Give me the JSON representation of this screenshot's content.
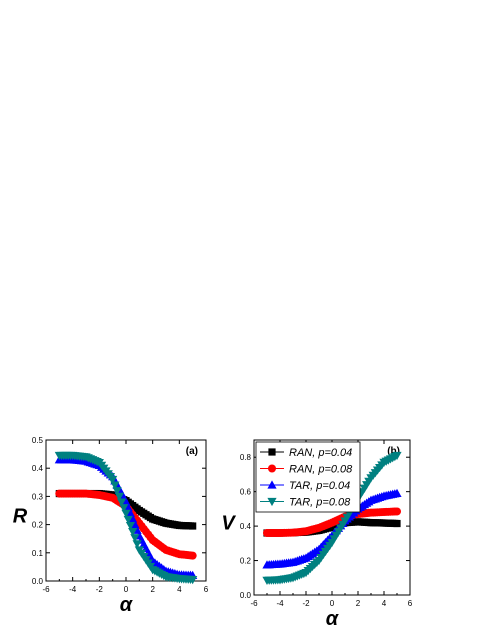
{
  "chart_data": [
    {
      "type": "scatter",
      "panel_label": "(a)",
      "xlabel": "α",
      "ylabel": "R",
      "xlim": [
        -6,
        6
      ],
      "ylim": [
        0,
        0.5
      ],
      "xticks": [
        "-6",
        "-4",
        "-2",
        "0",
        "2",
        "4",
        "6"
      ],
      "yticks": [
        "0.0",
        "0.1",
        "0.2",
        "0.3",
        "0.4",
        "0.5"
      ],
      "x": [
        -5,
        -4,
        -3,
        -2,
        -1,
        0,
        1,
        2,
        3,
        4,
        5
      ],
      "series": [
        {
          "color": "#000000",
          "marker": "square",
          "values": [
            0.31,
            0.31,
            0.31,
            0.31,
            0.305,
            0.285,
            0.25,
            0.22,
            0.205,
            0.197,
            0.195
          ]
        },
        {
          "color": "#ff0000",
          "marker": "circle",
          "values": [
            0.31,
            0.31,
            0.31,
            0.305,
            0.295,
            0.265,
            0.205,
            0.145,
            0.11,
            0.095,
            0.09
          ]
        },
        {
          "color": "#0000ff",
          "marker": "triangle-up",
          "values": [
            0.43,
            0.43,
            0.425,
            0.41,
            0.37,
            0.28,
            0.16,
            0.07,
            0.035,
            0.022,
            0.02
          ]
        },
        {
          "color": "#008080",
          "marker": "triangle-down",
          "values": [
            0.445,
            0.445,
            0.44,
            0.42,
            0.36,
            0.24,
            0.11,
            0.04,
            0.015,
            0.008,
            0.005
          ]
        }
      ]
    },
    {
      "type": "line",
      "panel_label": "(b)",
      "xlabel": "α",
      "ylabel": "V",
      "xlim": [
        -6,
        6
      ],
      "ylim": [
        0,
        0.9
      ],
      "xticks": [
        "-6",
        "-4",
        "-2",
        "0",
        "2",
        "4",
        "6"
      ],
      "yticks": [
        "0.0",
        "0.2",
        "0.4",
        "0.6",
        "0.8"
      ],
      "legend_position": "top-left",
      "x": [
        -5,
        -4,
        -3,
        -2,
        -1,
        0,
        1,
        2,
        3,
        4,
        5
      ],
      "series": [
        {
          "name": "RAN, p=0.04",
          "color": "#000000",
          "marker": "square",
          "values": [
            0.36,
            0.36,
            0.362,
            0.365,
            0.375,
            0.395,
            0.42,
            0.425,
            0.42,
            0.418,
            0.415
          ]
        },
        {
          "name": "RAN, p=0.08",
          "color": "#ff0000",
          "marker": "circle",
          "values": [
            0.36,
            0.36,
            0.362,
            0.37,
            0.39,
            0.42,
            0.455,
            0.47,
            0.478,
            0.482,
            0.485
          ]
        },
        {
          "name": "TAR, p=0.04",
          "color": "#0000ff",
          "marker": "triangle-up",
          "values": [
            0.175,
            0.18,
            0.19,
            0.215,
            0.265,
            0.345,
            0.43,
            0.5,
            0.55,
            0.575,
            0.59
          ]
        },
        {
          "name": "TAR, p=0.08",
          "color": "#008080",
          "marker": "triangle-down",
          "values": [
            0.085,
            0.088,
            0.1,
            0.13,
            0.2,
            0.305,
            0.43,
            0.56,
            0.68,
            0.77,
            0.81
          ]
        }
      ]
    }
  ]
}
